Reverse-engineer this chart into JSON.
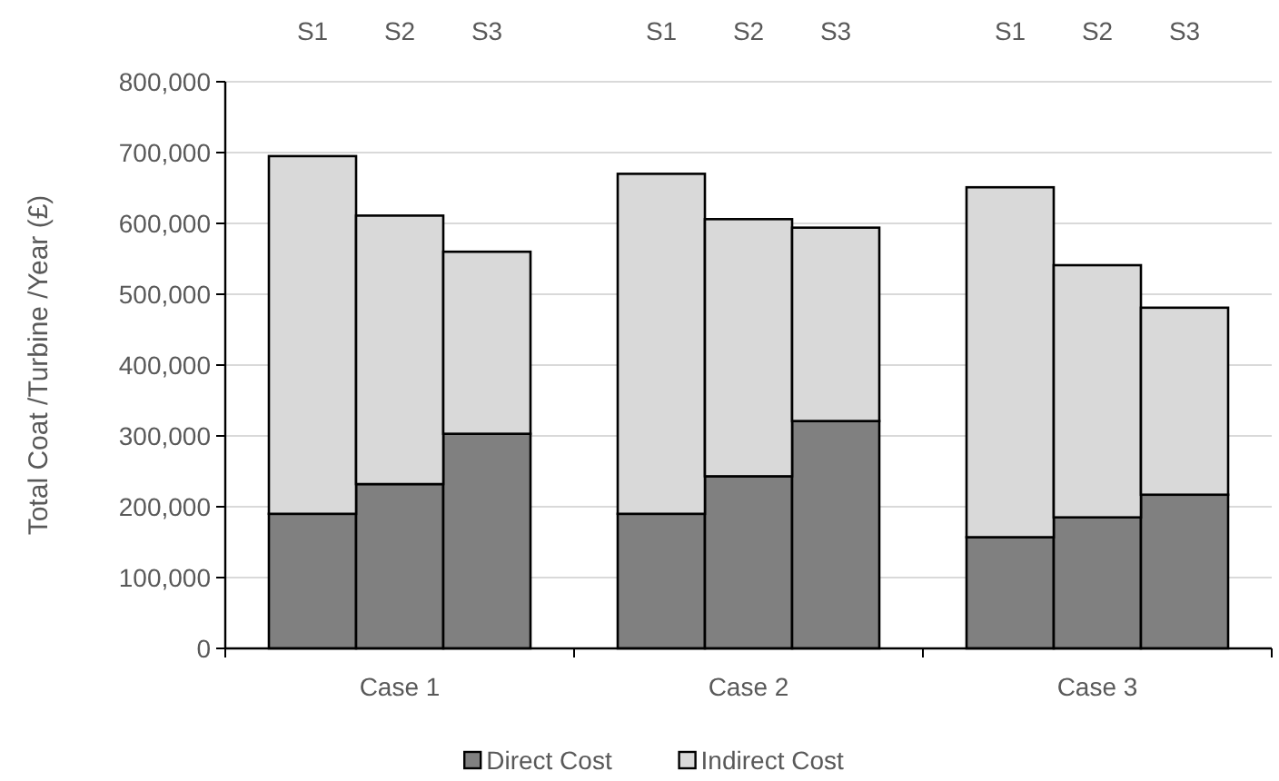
{
  "chart_data": {
    "type": "bar",
    "stacked": true,
    "ylabel": "Total Coat /Turbine /Year (£)",
    "categories": [
      "S1",
      "S2",
      "S3",
      "S1",
      "S2",
      "S3",
      "S1",
      "S2",
      "S3"
    ],
    "series": [
      {
        "name": "Direct Cost",
        "color": "#808080",
        "values": [
          190000,
          232000,
          303000,
          190000,
          243000,
          321000,
          157000,
          185000,
          217000
        ]
      },
      {
        "name": "Indirect Cost",
        "color": "#d9d9d9",
        "values": [
          505000,
          379000,
          257000,
          480000,
          363000,
          273000,
          494000,
          356000,
          264000
        ]
      }
    ],
    "annotations": [
      "Case 1",
      "Case 2",
      "Case 3"
    ],
    "ylim": [
      0,
      800000
    ],
    "yticks": [
      {
        "value": 0,
        "label": "0"
      },
      {
        "value": 100000,
        "label": "100,000"
      },
      {
        "value": 200000,
        "label": "200,000"
      },
      {
        "value": 300000,
        "label": "300,000"
      },
      {
        "value": 400000,
        "label": "400,000"
      },
      {
        "value": 500000,
        "label": "500,000"
      },
      {
        "value": 600000,
        "label": "600,000"
      },
      {
        "value": 700000,
        "label": "700,000"
      },
      {
        "value": 800000,
        "label": "800,000"
      }
    ],
    "grid": "y",
    "legend": "bottom"
  }
}
